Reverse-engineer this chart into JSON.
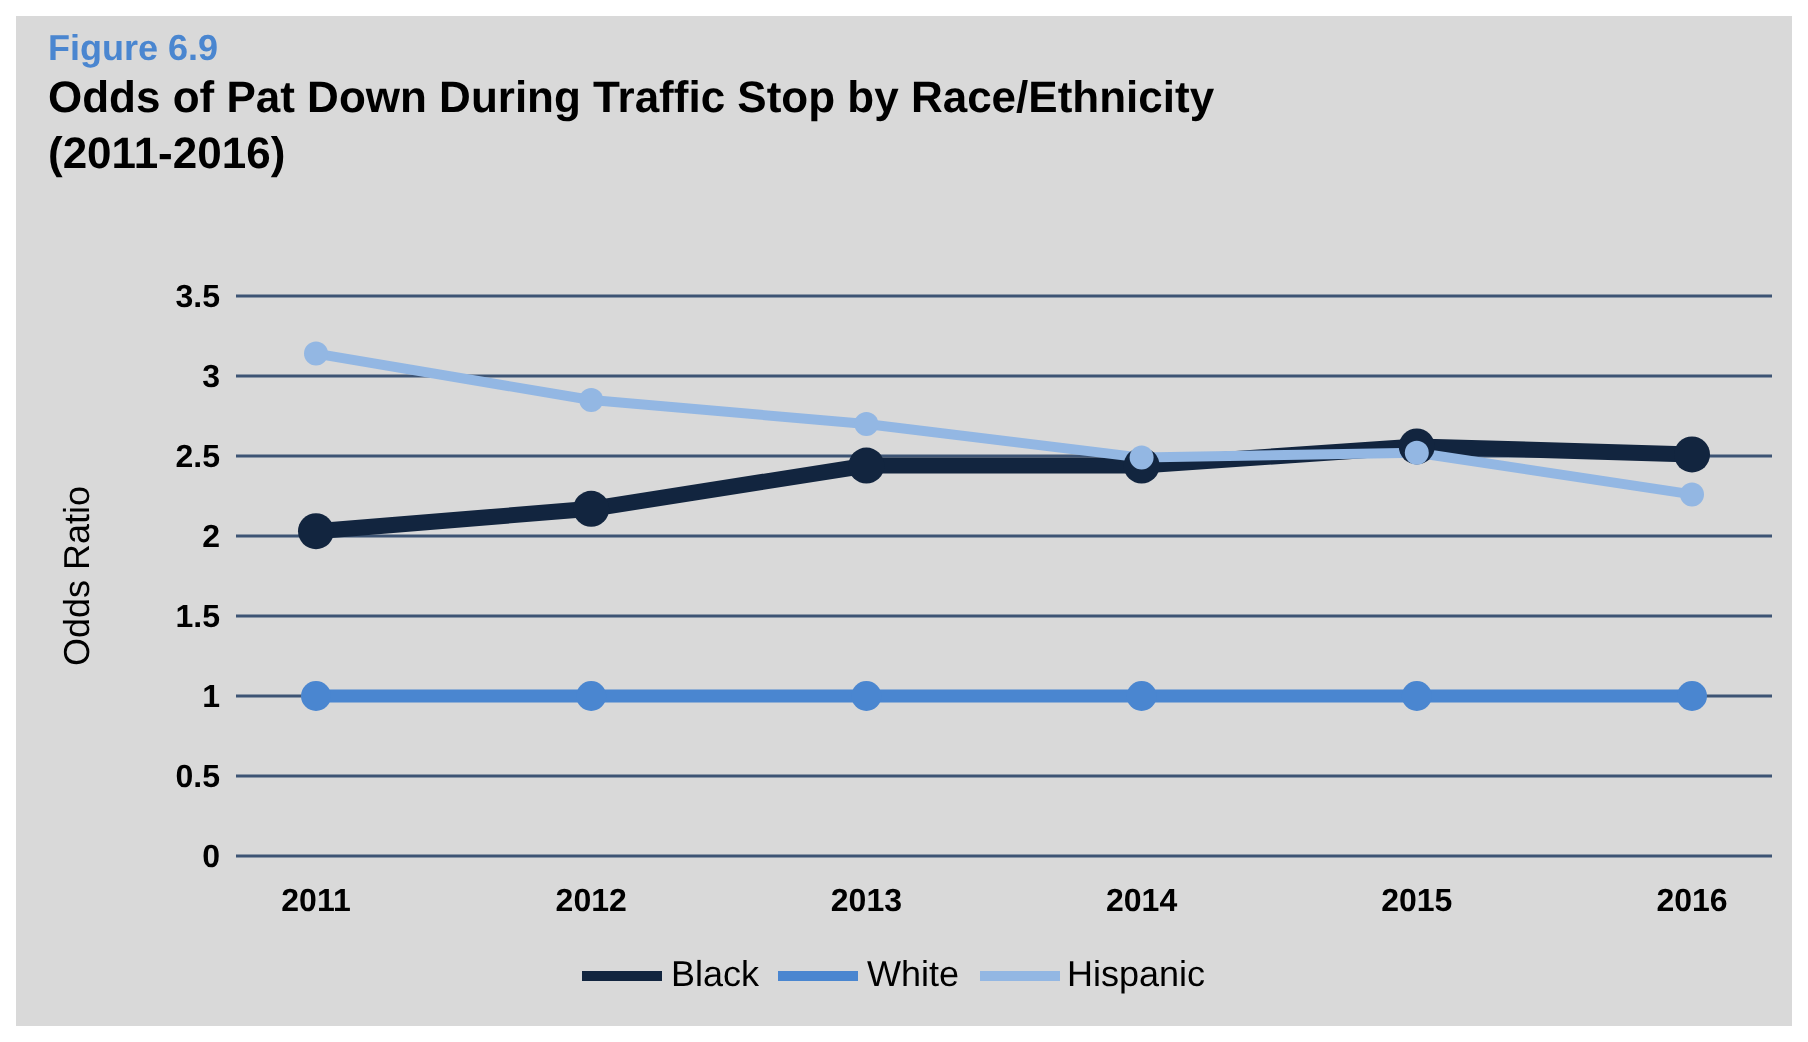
{
  "chart_data": {
    "type": "line",
    "subtitle": "Figure 6.9",
    "title": "Odds of Pat Down During Traffic Stop by Race/Ethnicity (2011-2016)",
    "ylabel": "Odds Ratio",
    "categories": [
      "2011",
      "2012",
      "2013",
      "2014",
      "2015",
      "2016"
    ],
    "series": [
      {
        "name": "Black",
        "color": "#12253f",
        "values": [
          2.03,
          2.17,
          2.44,
          2.44,
          2.56,
          2.51
        ]
      },
      {
        "name": "White",
        "color": "#4a86d0",
        "values": [
          1,
          1,
          1,
          1,
          1,
          1
        ]
      },
      {
        "name": "Hispanic",
        "color": "#93b7e3",
        "values": [
          3.14,
          2.85,
          2.7,
          2.49,
          2.52,
          2.26
        ]
      }
    ],
    "ylim": [
      0,
      3.5
    ],
    "yticks": [
      0,
      0.5,
      1,
      1.5,
      2,
      2.5,
      3,
      3.5
    ],
    "grid": "y",
    "legend": "bottom",
    "marker": "circle",
    "line_style": "solid"
  }
}
